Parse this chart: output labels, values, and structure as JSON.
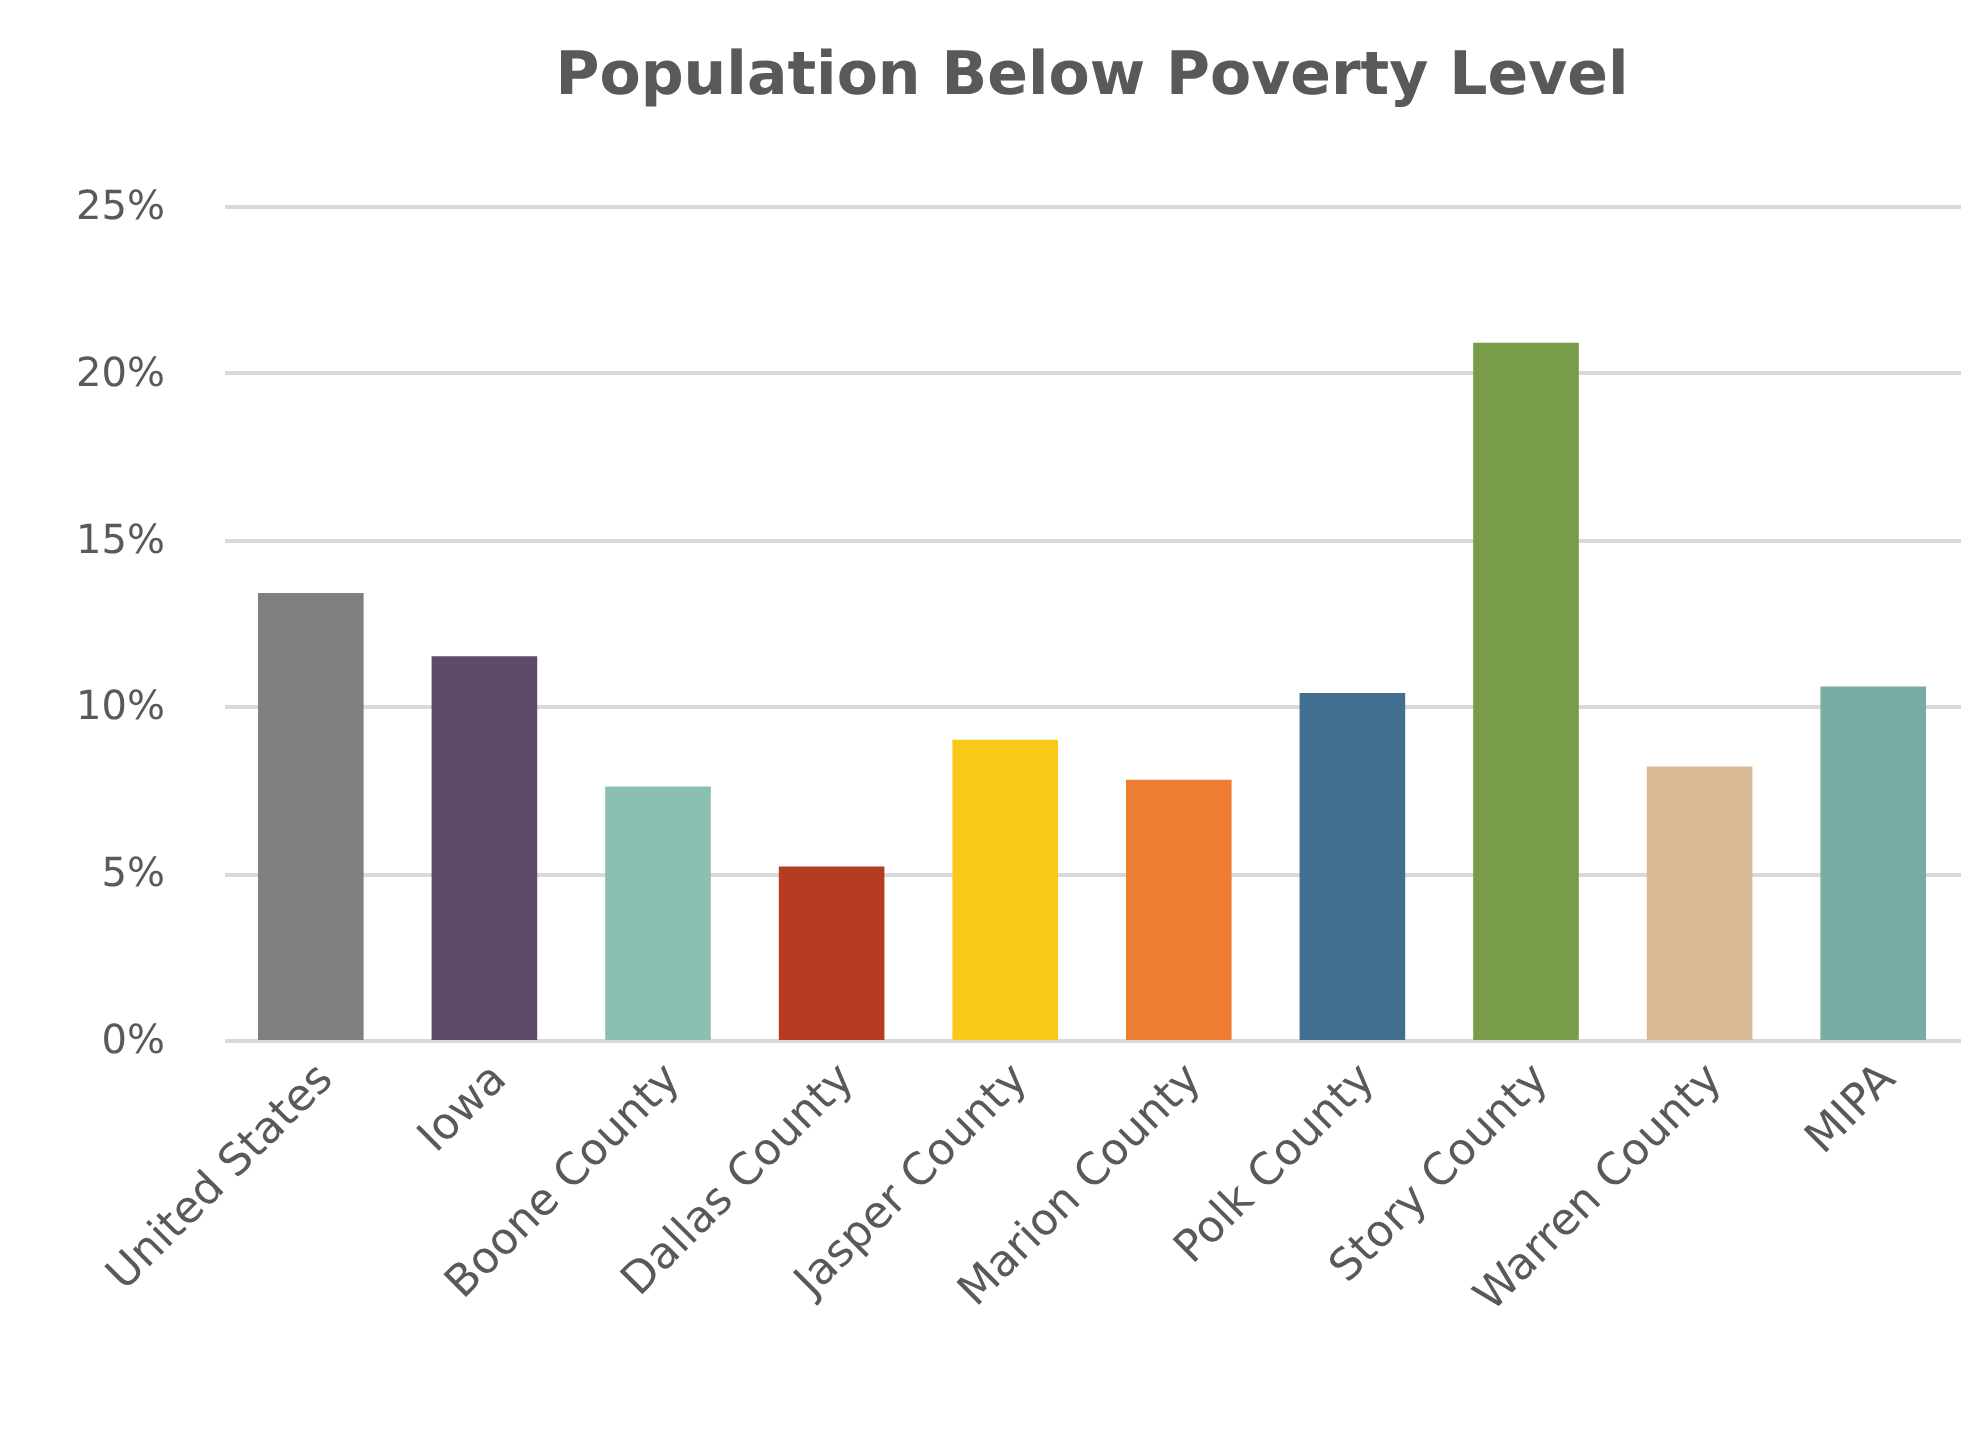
{
  "chart_data": {
    "type": "bar",
    "title": "Population Below Poverty Level",
    "categories": [
      "United States",
      "Iowa",
      "Boone County",
      "Dallas County",
      "Jasper County",
      "Marion County",
      "Polk County",
      "Story County",
      "Warren County",
      "MIPA"
    ],
    "values": [
      13.4,
      11.5,
      7.6,
      5.2,
      9.0,
      7.8,
      10.4,
      20.9,
      8.2,
      10.6
    ],
    "colors": [
      "#7f7f7f",
      "#604a6a",
      "#8bbfb2",
      "#b53c22",
      "#f9c91a",
      "#ec7d33",
      "#426f90",
      "#789c48",
      "#d9ba94",
      "#78ada4"
    ],
    "ylim": [
      0,
      25
    ],
    "yticks": [
      {
        "value": 0,
        "label": "0%"
      },
      {
        "value": 5,
        "label": "5%"
      },
      {
        "value": 10,
        "label": "10%"
      },
      {
        "value": 15,
        "label": "15%"
      },
      {
        "value": 20,
        "label": "20%"
      },
      {
        "value": 25,
        "label": "25%"
      }
    ],
    "grid": "y"
  }
}
